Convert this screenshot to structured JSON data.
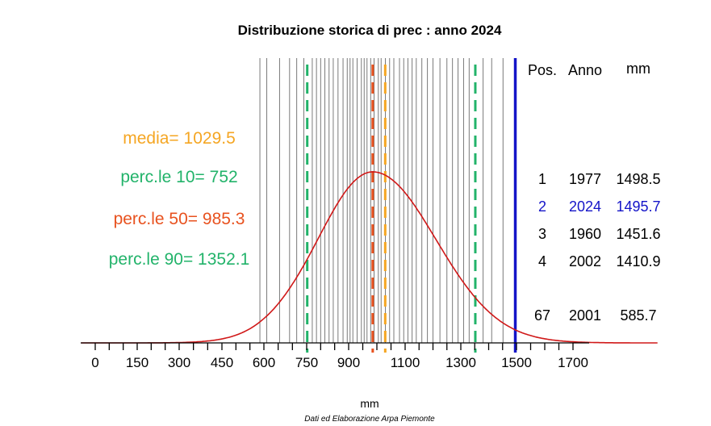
{
  "chart_data": {
    "type": "histogram-rug",
    "title": "Distribuzione storica di prec : anno  2024",
    "xlabel": "mm",
    "credit": "Dati ed Elaborazione Arpa Piemonte",
    "xlim": [
      0,
      1700
    ],
    "xticks": [
      0,
      150,
      300,
      450,
      600,
      750,
      900,
      1100,
      1300,
      1500,
      1700
    ],
    "xtick_minor_step": 50,
    "stats": {
      "media": {
        "label": "media= 1029.5",
        "value": 1029.5,
        "color": "#f5a623"
      },
      "p10": {
        "label": "perc.le 10= 752",
        "value": 752,
        "color": "#22b36a"
      },
      "p50": {
        "label": "perc.le 50= 985.3",
        "value": 985.3,
        "color": "#e8521f"
      },
      "p90": {
        "label": "perc.le 90= 1352.1",
        "value": 1352.1,
        "color": "#22b36a"
      }
    },
    "current_year": {
      "year": 2024,
      "value": 1495.7,
      "color": "#1414c8"
    },
    "years_values_mm": [
      585.7,
      610,
      655,
      690,
      715,
      740,
      770,
      785,
      800,
      815,
      830,
      845,
      862,
      880,
      895,
      905,
      915,
      930,
      945,
      955,
      965,
      978,
      990,
      1005,
      1015,
      1030,
      1045,
      1060,
      1080,
      1095,
      1110,
      1125,
      1140,
      1160,
      1180,
      1200,
      1225,
      1250,
      1270,
      1290,
      1310,
      1330,
      1380,
      1410.9,
      1451.6,
      1498.5
    ],
    "density_curve": {
      "type": "gamma-like",
      "mode": 985,
      "color": "#d01818"
    },
    "table": {
      "headers": [
        "Pos.",
        "Anno",
        "mm"
      ],
      "rows": [
        {
          "pos": "1",
          "anno": "1977",
          "mm": "1498.5",
          "highlight": false
        },
        {
          "pos": "2",
          "anno": "2024",
          "mm": "1495.7",
          "highlight": true
        },
        {
          "pos": "3",
          "anno": "1960",
          "mm": "1451.6",
          "highlight": false
        },
        {
          "pos": "4",
          "anno": "2002",
          "mm": "1410.9",
          "highlight": false
        }
      ],
      "last_row": {
        "pos": "67",
        "anno": "2001",
        "mm": "585.7",
        "highlight": false
      }
    }
  }
}
